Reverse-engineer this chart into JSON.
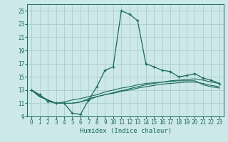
{
  "xlabel": "Humidex (Indice chaleur)",
  "bg_color": "#cce8e8",
  "grid_color": "#b0d0d0",
  "line_color": "#1a6b5a",
  "xlim": [
    -0.5,
    23.5
  ],
  "ylim": [
    9,
    26
  ],
  "xticks": [
    0,
    1,
    2,
    3,
    4,
    5,
    6,
    7,
    8,
    9,
    10,
    11,
    12,
    13,
    14,
    15,
    16,
    17,
    18,
    19,
    20,
    21,
    22,
    23
  ],
  "yticks": [
    9,
    11,
    13,
    15,
    17,
    19,
    21,
    23,
    25
  ],
  "series_main_x": [
    0,
    1,
    2,
    3,
    4,
    5,
    6,
    7,
    8,
    9,
    10,
    11,
    12,
    13,
    14,
    15,
    16,
    17,
    18,
    19,
    20,
    21,
    22,
    23
  ],
  "series_main_y": [
    13.0,
    12.3,
    11.3,
    11.0,
    11.0,
    9.5,
    9.3,
    11.5,
    13.5,
    16.0,
    16.5,
    25.0,
    24.5,
    23.5,
    17.0,
    16.5,
    16.0,
    15.8,
    15.0,
    15.2,
    15.5,
    14.8,
    14.5,
    14.0
  ],
  "series_low1_x": [
    0,
    1,
    2,
    3,
    4,
    5,
    6,
    7,
    8,
    9,
    10,
    11,
    12,
    13,
    14,
    15,
    16,
    17,
    18,
    19,
    20,
    21,
    22,
    23
  ],
  "series_low1_y": [
    13.0,
    12.2,
    11.5,
    11.0,
    11.0,
    11.0,
    11.2,
    11.5,
    12.0,
    12.3,
    12.6,
    12.9,
    13.2,
    13.5,
    13.8,
    14.0,
    14.2,
    14.4,
    14.5,
    14.6,
    14.7,
    14.5,
    14.2,
    14.0
  ],
  "series_low2_x": [
    0,
    1,
    2,
    3,
    4,
    5,
    6,
    7,
    8,
    9,
    10,
    11,
    12,
    13,
    14,
    15,
    16,
    17,
    18,
    19,
    20,
    21,
    22,
    23
  ],
  "series_low2_y": [
    13.0,
    12.0,
    11.5,
    11.0,
    11.0,
    11.0,
    11.2,
    11.7,
    12.0,
    12.3,
    12.5,
    12.8,
    13.0,
    13.3,
    13.5,
    13.7,
    13.9,
    14.0,
    14.1,
    14.2,
    14.2,
    14.0,
    13.7,
    13.5
  ],
  "series_low3_x": [
    0,
    1,
    2,
    3,
    4,
    5,
    6,
    7,
    8,
    9,
    10,
    11,
    12,
    13,
    14,
    15,
    16,
    17,
    18,
    19,
    20,
    21,
    22,
    23
  ],
  "series_low3_y": [
    13.0,
    12.0,
    11.5,
    11.0,
    11.2,
    11.5,
    11.7,
    12.0,
    12.3,
    12.7,
    13.0,
    13.3,
    13.5,
    13.8,
    14.0,
    14.1,
    14.2,
    14.3,
    14.4,
    14.4,
    14.4,
    13.8,
    13.5,
    13.3
  ]
}
